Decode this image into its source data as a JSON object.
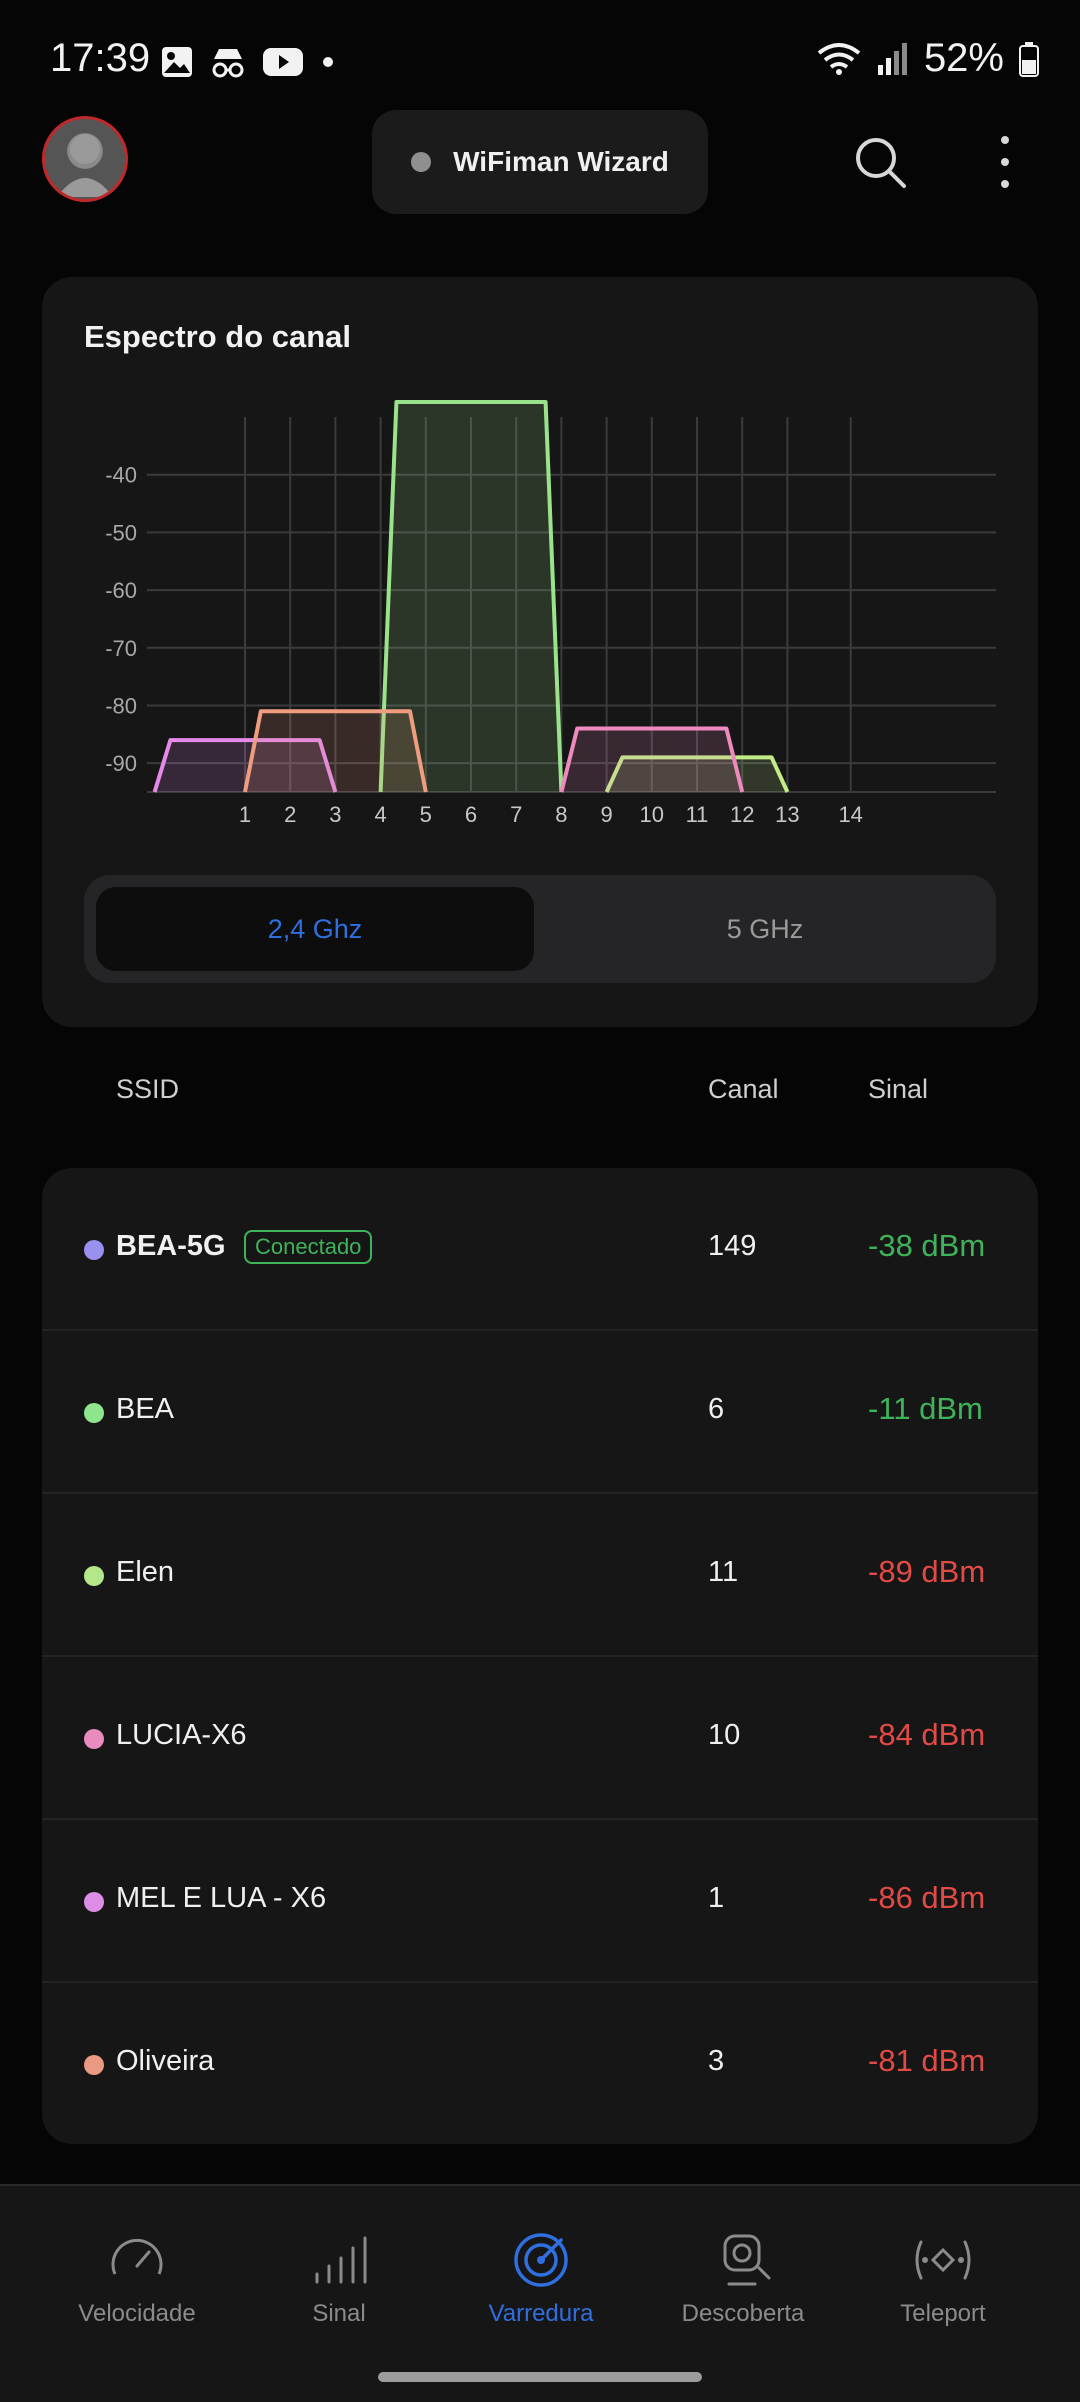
{
  "status": {
    "time": "17:39",
    "battery": "52%",
    "left_icons": [
      "gallery-icon",
      "incognito-icon",
      "youtube-icon",
      "dot-icon"
    ],
    "right_icons": [
      "wifi-icon",
      "cell-signal-icon",
      "battery-icon"
    ]
  },
  "header": {
    "app_title": "WiFiman Wizard",
    "search_icon": "search-icon",
    "menu_icon": "more-vert-icon"
  },
  "spectrum": {
    "title": "Espectro do canal",
    "band_options": [
      "2,4 Ghz",
      "5 GHz"
    ],
    "selected_band": "2,4 Ghz"
  },
  "chart_data": {
    "type": "area",
    "x_ticks": [
      "1",
      "2",
      "3",
      "4",
      "5",
      "6",
      "7",
      "8",
      "9",
      "10",
      "11",
      "12",
      "13",
      "14"
    ],
    "y_ticks": [
      "-40",
      "-50",
      "-60",
      "-70",
      "-80",
      "-90"
    ],
    "ylim": [
      -95,
      -30
    ],
    "xlim": [
      -1.2,
      17.2
    ],
    "grid": true,
    "series": [
      {
        "name": "BEA",
        "channel": 6,
        "dbm": -11,
        "color": "#9be38a"
      },
      {
        "name": "Elen",
        "channel": 11,
        "dbm": -89,
        "color": "#c2ec86"
      },
      {
        "name": "LUCIA-X6",
        "channel": 10,
        "dbm": -84,
        "color": "#ee8abe"
      },
      {
        "name": "MEL E LUA - X6",
        "channel": 1,
        "dbm": -86,
        "color": "#e58ae9"
      },
      {
        "name": "Oliveira",
        "channel": 3,
        "dbm": -81,
        "color": "#ef9c7f"
      }
    ]
  },
  "list": {
    "headers": {
      "ssid": "SSID",
      "canal": "Canal",
      "sinal": "Sinal"
    },
    "connected_label": "Conectado",
    "networks": [
      {
        "ssid": "BEA-5G",
        "canal": "149",
        "signal": "-38 dBm",
        "color": "#9b8ff0",
        "connected": true,
        "quality": "good"
      },
      {
        "ssid": "BEA",
        "canal": "6",
        "signal": "-11 dBm",
        "color": "#8fe58b",
        "connected": false,
        "quality": "good"
      },
      {
        "ssid": "Elen",
        "canal": "11",
        "signal": "-89 dBm",
        "color": "#b6e68a",
        "connected": false,
        "quality": "bad"
      },
      {
        "ssid": "LUCIA-X6",
        "canal": "10",
        "signal": "-84 dBm",
        "color": "#e88bbf",
        "connected": false,
        "quality": "bad"
      },
      {
        "ssid": "MEL E LUA - X6",
        "canal": "1",
        "signal": "-86 dBm",
        "color": "#dc8ee6",
        "connected": false,
        "quality": "bad"
      },
      {
        "ssid": "Oliveira",
        "canal": "3",
        "signal": "-81 dBm",
        "color": "#ea9a82",
        "connected": false,
        "quality": "bad"
      }
    ]
  },
  "nav": {
    "items": [
      {
        "label": "Velocidade",
        "icon": "speedometer-icon"
      },
      {
        "label": "Sinal",
        "icon": "signal-bars-icon"
      },
      {
        "label": "Varredura",
        "icon": "radar-scan-icon"
      },
      {
        "label": "Descoberta",
        "icon": "device-search-icon"
      },
      {
        "label": "Teleport",
        "icon": "teleport-icon"
      }
    ],
    "active": "Varredura"
  }
}
